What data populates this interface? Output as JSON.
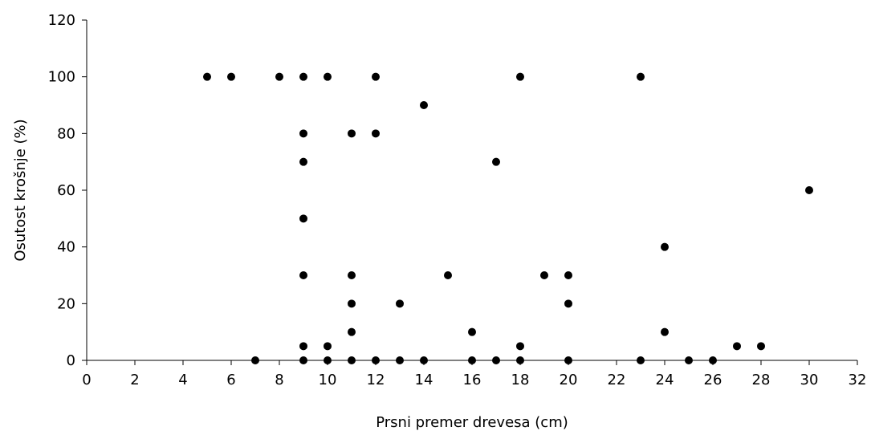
{
  "chart_data": {
    "type": "scatter",
    "xlabel": "Prsni premer drevesa (cm)",
    "ylabel": "Osutost krošnje (%)",
    "xlim": [
      0,
      32
    ],
    "ylim": [
      0,
      120
    ],
    "xticks": [
      0,
      2,
      4,
      6,
      8,
      10,
      12,
      14,
      16,
      18,
      20,
      22,
      24,
      26,
      28,
      30,
      32
    ],
    "yticks": [
      0,
      20,
      40,
      60,
      80,
      100,
      120
    ],
    "xtick_labels": [
      "0",
      "2",
      "4",
      "6",
      "8",
      "10",
      "12",
      "14",
      "16",
      "18",
      "20",
      "22",
      "24",
      "26",
      "28",
      "30",
      "32"
    ],
    "ytick_labels": [
      "0",
      "20",
      "40",
      "60",
      "80",
      "100",
      "120"
    ],
    "grid": false,
    "marker_color": "#000000",
    "points": [
      {
        "x": 5,
        "y": 100
      },
      {
        "x": 6,
        "y": 100
      },
      {
        "x": 8,
        "y": 100
      },
      {
        "x": 9,
        "y": 100
      },
      {
        "x": 10,
        "y": 100
      },
      {
        "x": 12,
        "y": 100
      },
      {
        "x": 18,
        "y": 100
      },
      {
        "x": 23,
        "y": 100
      },
      {
        "x": 14,
        "y": 90
      },
      {
        "x": 9,
        "y": 80
      },
      {
        "x": 11,
        "y": 80
      },
      {
        "x": 12,
        "y": 80
      },
      {
        "x": 9,
        "y": 70
      },
      {
        "x": 17,
        "y": 70
      },
      {
        "x": 30,
        "y": 60
      },
      {
        "x": 9,
        "y": 50
      },
      {
        "x": 24,
        "y": 40
      },
      {
        "x": 9,
        "y": 30
      },
      {
        "x": 11,
        "y": 30
      },
      {
        "x": 15,
        "y": 30
      },
      {
        "x": 19,
        "y": 30
      },
      {
        "x": 20,
        "y": 30
      },
      {
        "x": 11,
        "y": 20
      },
      {
        "x": 13,
        "y": 20
      },
      {
        "x": 20,
        "y": 20
      },
      {
        "x": 11,
        "y": 10
      },
      {
        "x": 16,
        "y": 10
      },
      {
        "x": 24,
        "y": 10
      },
      {
        "x": 9,
        "y": 5
      },
      {
        "x": 10,
        "y": 5
      },
      {
        "x": 18,
        "y": 5
      },
      {
        "x": 27,
        "y": 5
      },
      {
        "x": 28,
        "y": 5
      },
      {
        "x": 7,
        "y": 0
      },
      {
        "x": 9,
        "y": 0
      },
      {
        "x": 10,
        "y": 0
      },
      {
        "x": 11,
        "y": 0
      },
      {
        "x": 12,
        "y": 0
      },
      {
        "x": 13,
        "y": 0
      },
      {
        "x": 14,
        "y": 0
      },
      {
        "x": 16,
        "y": 0
      },
      {
        "x": 17,
        "y": 0
      },
      {
        "x": 18,
        "y": 0
      },
      {
        "x": 20,
        "y": 0
      },
      {
        "x": 23,
        "y": 0
      },
      {
        "x": 25,
        "y": 0
      },
      {
        "x": 26,
        "y": 0
      }
    ]
  }
}
